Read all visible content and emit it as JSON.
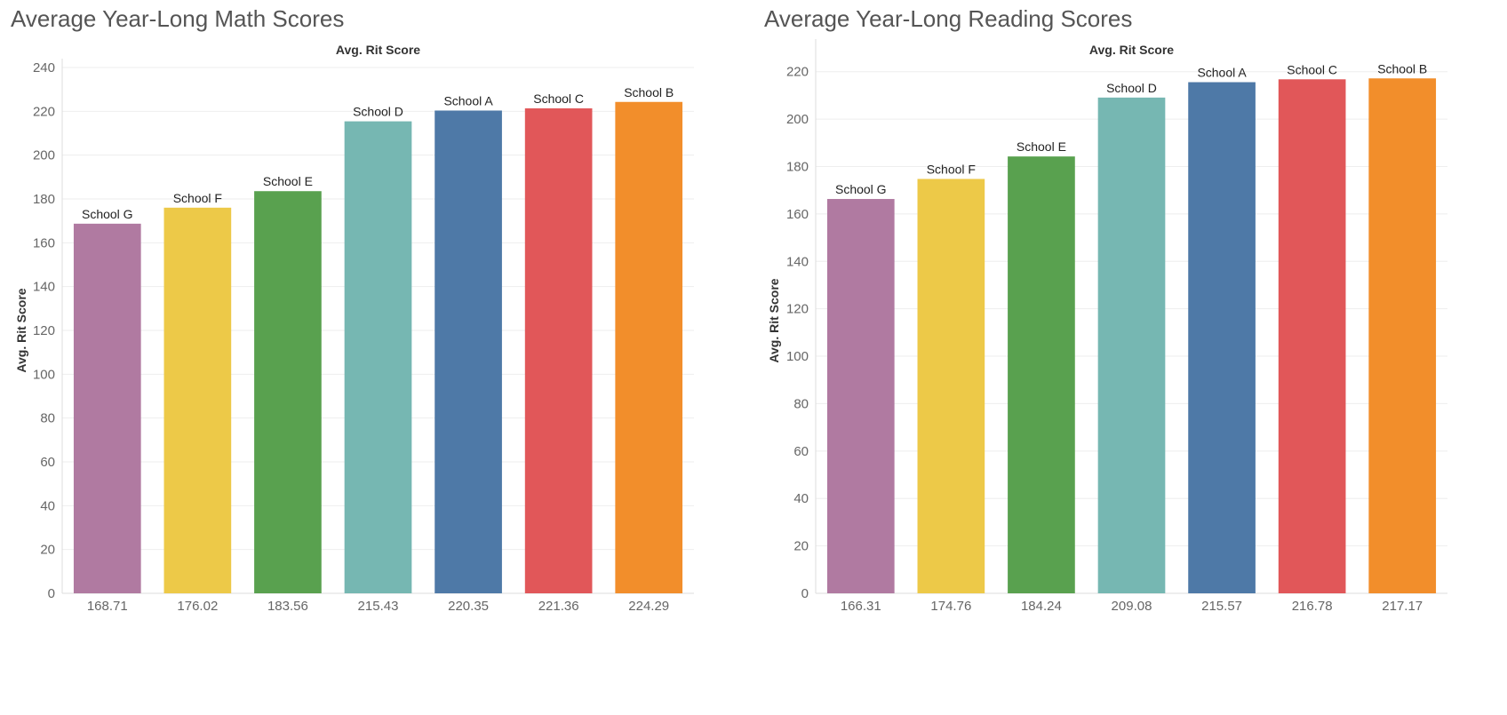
{
  "chart_data": [
    {
      "type": "bar",
      "title": "Average Year-Long Math Scores",
      "column_header": "Avg. Rit Score",
      "ylabel": "Avg. Rit Score",
      "ylim": [
        0,
        240
      ],
      "yticks": [
        0,
        20,
        40,
        60,
        80,
        100,
        120,
        140,
        160,
        180,
        200,
        220,
        240
      ],
      "categories": [
        "168.71",
        "176.02",
        "183.56",
        "215.43",
        "220.35",
        "221.36",
        "224.29"
      ],
      "bar_labels": [
        "School G",
        "School F",
        "School E",
        "School D",
        "School A",
        "School C",
        "School B"
      ],
      "values": [
        168.71,
        176.02,
        183.56,
        215.43,
        220.35,
        221.36,
        224.29
      ],
      "colors": [
        "#b07aa1",
        "#edc948",
        "#59a14f",
        "#76b7b2",
        "#4e79a7",
        "#e15759",
        "#f28e2b"
      ],
      "grid": true
    },
    {
      "type": "bar",
      "title": "Average Year-Long Reading Scores",
      "column_header": "Avg. Rit Score",
      "ylabel": "Avg. Rit Score",
      "ylim": [
        0,
        230
      ],
      "yticks": [
        0,
        20,
        40,
        60,
        80,
        100,
        120,
        140,
        160,
        180,
        200,
        220
      ],
      "categories": [
        "166.31",
        "174.76",
        "184.24",
        "209.08",
        "215.57",
        "216.78",
        "217.17"
      ],
      "bar_labels": [
        "School G",
        "School F",
        "School E",
        "School D",
        "School A",
        "School C",
        "School B"
      ],
      "values": [
        166.31,
        174.76,
        184.24,
        209.08,
        215.57,
        216.78,
        217.17
      ],
      "colors": [
        "#b07aa1",
        "#edc948",
        "#59a14f",
        "#76b7b2",
        "#4e79a7",
        "#e15759",
        "#f28e2b"
      ],
      "grid": true
    }
  ]
}
